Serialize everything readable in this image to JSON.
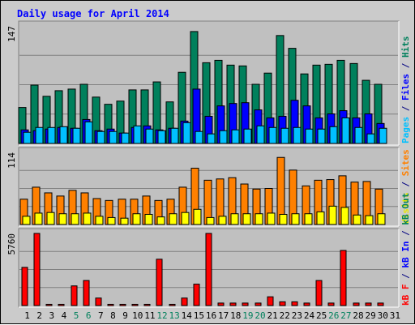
{
  "chart_data": {
    "type": "bar",
    "title": "Daily usage for April 2014",
    "days": [
      "1",
      "2",
      "3",
      "4",
      "5",
      "6",
      "7",
      "8",
      "9",
      "10",
      "11",
      "12",
      "13",
      "14",
      "15",
      "16",
      "17",
      "18",
      "19",
      "20",
      "21",
      "22",
      "23",
      "24",
      "25",
      "26",
      "27",
      "28",
      "29",
      "30",
      "31"
    ],
    "weekend_days": [
      "5",
      "6",
      "12",
      "13",
      "19",
      "20",
      "26",
      "27"
    ],
    "panels": [
      {
        "id": "pages-files-hits",
        "ytick": "147",
        "ymax": 147,
        "series": [
          {
            "name": "Hits",
            "color": "#00805c",
            "values": [
              45,
              73,
              59,
              66,
              68,
              74,
              58,
              49,
              53,
              67,
              67,
              77,
              52,
              89,
              140,
              101,
              104,
              98,
              97,
              74,
              88,
              135,
              119,
              87,
              98,
              99,
              104,
              100,
              79,
              74,
              null
            ]
          },
          {
            "name": "Files",
            "color": "#0000ff",
            "values": [
              17,
              16,
              18,
              20,
              19,
              30,
              16,
              18,
              13,
              20,
              22,
              17,
              19,
              28,
              68,
              34,
              47,
              50,
              51,
              42,
              32,
              34,
              54,
              47,
              32,
              37,
              41,
              32,
              37,
              25,
              null
            ]
          },
          {
            "name": "Pages",
            "color": "#00c0ff",
            "values": [
              14,
              20,
              20,
              21,
              19,
              27,
              15,
              15,
              13,
              22,
              18,
              16,
              19,
              26,
              15,
              12,
              16,
              17,
              18,
              22,
              20,
              19,
              20,
              18,
              18,
              21,
              32,
              20,
              12,
              19,
              null
            ]
          }
        ]
      },
      {
        "id": "visits-sites",
        "ytick": "114",
        "ymax": 114,
        "series": [
          {
            "name": "Sites",
            "color": "#ff8000",
            "values": [
              40,
              59,
              50,
              45,
              54,
              50,
              41,
              38,
              40,
              40,
              45,
              38,
              40,
              59,
              89,
              70,
              72,
              74,
              64,
              56,
              57,
              106,
              86,
              61,
              70,
              71,
              77,
              67,
              68,
              56,
              null
            ]
          },
          {
            "name": "Visits",
            "color": "#ffff00",
            "values": [
              13,
              18,
              19,
              17,
              17,
              18,
              13,
              11,
              10,
              17,
              16,
              12,
              17,
              19,
              24,
              11,
              13,
              17,
              17,
              17,
              18,
              16,
              17,
              17,
              20,
              29,
              27,
              15,
              14,
              17,
              null
            ]
          }
        ]
      },
      {
        "id": "kbytes",
        "ytick": "5760",
        "ymax": 5760,
        "series": [
          {
            "name": "kB F",
            "color": "#ff0000",
            "values": [
              3050,
              5760,
              100,
              100,
              1570,
              2000,
              600,
              100,
              100,
              100,
              100,
              3700,
              100,
              600,
              1710,
              5760,
              200,
              200,
              200,
              200,
              700,
              300,
              300,
              200,
              2000,
              200,
              4400,
              200,
              200,
              200,
              null
            ]
          }
        ]
      }
    ],
    "side_labels": {
      "top": [
        {
          "text": "Pages",
          "color": "#00c0ff"
        },
        {
          "text": " / ",
          "color": "#000080"
        },
        {
          "text": "Files",
          "color": "#0000ff"
        },
        {
          "text": " / ",
          "color": "#000080"
        },
        {
          "text": "Hits",
          "color": "#00805c"
        }
      ],
      "middle": [
        {
          "text": "Visits",
          "color": "#e8e800"
        },
        {
          "text": " / ",
          "color": "#000080"
        },
        {
          "text": "Sites",
          "color": "#ff8000"
        }
      ],
      "bottom": [
        {
          "text": "kB F",
          "color": "#ff0000"
        },
        {
          "text": " / ",
          "color": "#000080"
        },
        {
          "text": "kB In",
          "color": "#0000ff"
        },
        {
          "text": " / ",
          "color": "#000080"
        },
        {
          "text": "kB Out",
          "color": "#00805c"
        }
      ]
    },
    "colors": {
      "title": "#0000ff",
      "weekday_label": "#000000",
      "weekend_label": "#00805c",
      "grid": "#808080",
      "panel_bg": "#c0c0c0"
    }
  }
}
